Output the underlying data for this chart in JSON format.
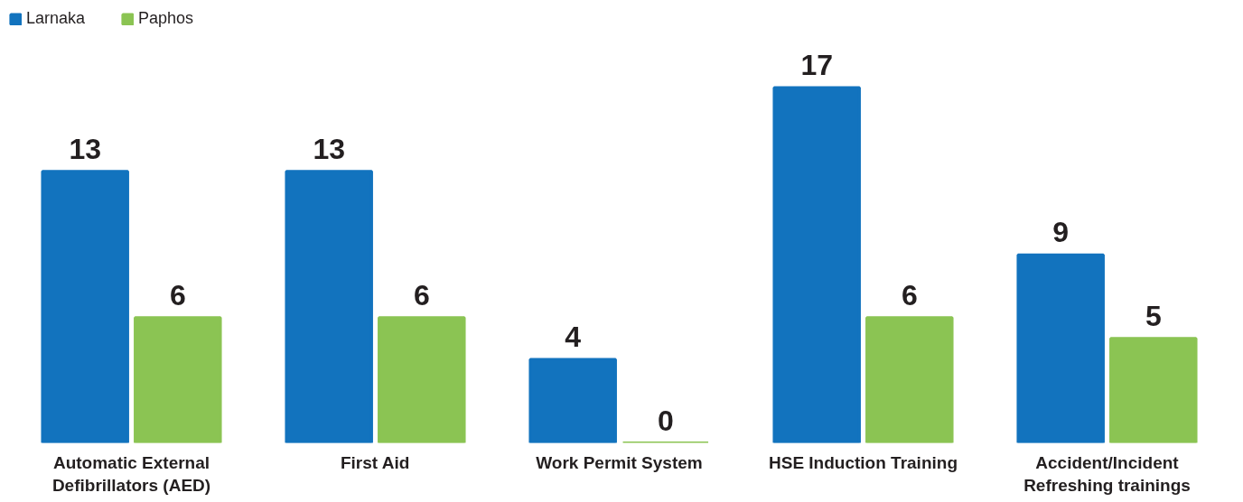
{
  "chart_data": {
    "type": "bar",
    "categories": [
      "Automatic External\nDefibrillators (AED)",
      "First Aid",
      "Work Permit System",
      "HSE Induction Training",
      "Accident/Incident\nRefreshing trainings"
    ],
    "series": [
      {
        "name": "Larnaka",
        "color": "#1273be",
        "values": [
          13,
          13,
          4,
          17,
          9
        ]
      },
      {
        "name": "Paphos",
        "color": "#8bc453",
        "values": [
          6,
          6,
          0,
          6,
          5
        ]
      }
    ],
    "data_labels": true,
    "legend": "top left",
    "grid": false
  }
}
